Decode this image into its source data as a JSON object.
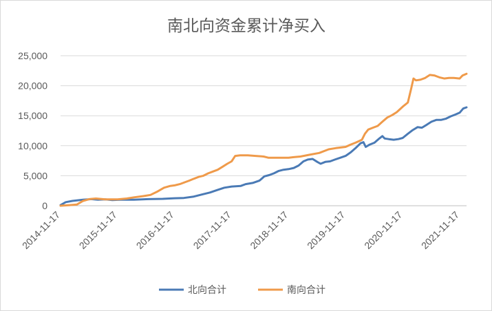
{
  "chart_data": {
    "type": "line",
    "title": "南北向资金累计净买入",
    "xlabel": "",
    "ylabel": "",
    "ylim": [
      0,
      25000
    ],
    "yticks": [
      "0",
      "5,000",
      "10,000",
      "15,000",
      "20,000",
      "25,000"
    ],
    "y_gridlines": true,
    "xlim": [
      "2014-11-17",
      "2021-12-31"
    ],
    "xticks": [
      "2014-11-17",
      "2015-11-17",
      "2016-11-17",
      "2017-11-17",
      "2018-11-17",
      "2019-11-17",
      "2020-11-17",
      "2021-11-17"
    ],
    "legend_position": "bottom",
    "series": [
      {
        "name": "北向合计",
        "color": "#4a7ab5",
        "points": [
          [
            "2014-11-17",
            100
          ],
          [
            "2014-12-20",
            600
          ],
          [
            "2015-02-01",
            800
          ],
          [
            "2015-04-10",
            1000
          ],
          [
            "2015-06-01",
            1100
          ],
          [
            "2015-07-15",
            1000
          ],
          [
            "2015-09-01",
            1050
          ],
          [
            "2015-10-15",
            950
          ],
          [
            "2015-12-01",
            1000
          ],
          [
            "2016-03-01",
            1000
          ],
          [
            "2016-06-01",
            1100
          ],
          [
            "2016-09-01",
            1150
          ],
          [
            "2016-11-17",
            1250
          ],
          [
            "2017-01-15",
            1300
          ],
          [
            "2017-03-15",
            1500
          ],
          [
            "2017-05-15",
            1900
          ],
          [
            "2017-07-01",
            2200
          ],
          [
            "2017-08-15",
            2600
          ],
          [
            "2017-10-01",
            3000
          ],
          [
            "2017-11-17",
            3200
          ],
          [
            "2018-01-15",
            3300
          ],
          [
            "2018-02-15",
            3600
          ],
          [
            "2018-04-01",
            3800
          ],
          [
            "2018-05-15",
            4200
          ],
          [
            "2018-06-15",
            4900
          ],
          [
            "2018-07-15",
            5100
          ],
          [
            "2018-08-15",
            5400
          ],
          [
            "2018-09-15",
            5800
          ],
          [
            "2018-10-15",
            6000
          ],
          [
            "2018-11-17",
            6100
          ],
          [
            "2018-12-20",
            6300
          ],
          [
            "2019-01-20",
            6700
          ],
          [
            "2019-02-20",
            7400
          ],
          [
            "2019-03-20",
            7700
          ],
          [
            "2019-04-20",
            7800
          ],
          [
            "2019-05-20",
            7300
          ],
          [
            "2019-06-10",
            7000
          ],
          [
            "2019-07-10",
            7300
          ],
          [
            "2019-08-10",
            7400
          ],
          [
            "2019-09-10",
            7700
          ],
          [
            "2019-10-15",
            8000
          ],
          [
            "2019-11-17",
            8300
          ],
          [
            "2019-12-20",
            8900
          ],
          [
            "2020-01-20",
            9600
          ],
          [
            "2020-02-20",
            10400
          ],
          [
            "2020-03-10",
            10600
          ],
          [
            "2020-03-25",
            9800
          ],
          [
            "2020-04-20",
            10200
          ],
          [
            "2020-05-20",
            10500
          ],
          [
            "2020-06-20",
            11200
          ],
          [
            "2020-07-10",
            11600
          ],
          [
            "2020-07-25",
            11200
          ],
          [
            "2020-08-20",
            11100
          ],
          [
            "2020-09-20",
            11000
          ],
          [
            "2020-10-20",
            11100
          ],
          [
            "2020-11-17",
            11300
          ],
          [
            "2020-12-20",
            12000
          ],
          [
            "2021-01-20",
            12600
          ],
          [
            "2021-02-20",
            13100
          ],
          [
            "2021-03-20",
            13000
          ],
          [
            "2021-04-20",
            13500
          ],
          [
            "2021-05-20",
            14000
          ],
          [
            "2021-06-20",
            14300
          ],
          [
            "2021-07-20",
            14300
          ],
          [
            "2021-08-20",
            14500
          ],
          [
            "2021-09-20",
            14900
          ],
          [
            "2021-10-20",
            15200
          ],
          [
            "2021-11-17",
            15500
          ],
          [
            "2021-12-10",
            16200
          ],
          [
            "2021-12-31",
            16400
          ]
        ]
      },
      {
        "name": "南向合计",
        "color": "#ef9a4a",
        "points": [
          [
            "2014-11-17",
            0
          ],
          [
            "2015-01-15",
            100
          ],
          [
            "2015-03-01",
            200
          ],
          [
            "2015-04-10",
            800
          ],
          [
            "2015-05-20",
            1100
          ],
          [
            "2015-07-01",
            1200
          ],
          [
            "2015-09-01",
            1050
          ],
          [
            "2015-11-17",
            1050
          ],
          [
            "2016-01-15",
            1200
          ],
          [
            "2016-03-01",
            1400
          ],
          [
            "2016-05-01",
            1600
          ],
          [
            "2016-06-15",
            1800
          ],
          [
            "2016-08-01",
            2400
          ],
          [
            "2016-09-10",
            3000
          ],
          [
            "2016-10-20",
            3300
          ],
          [
            "2016-11-17",
            3400
          ],
          [
            "2016-12-20",
            3600
          ],
          [
            "2017-01-20",
            3900
          ],
          [
            "2017-02-20",
            4200
          ],
          [
            "2017-03-20",
            4500
          ],
          [
            "2017-04-20",
            4800
          ],
          [
            "2017-05-20",
            5000
          ],
          [
            "2017-06-20",
            5400
          ],
          [
            "2017-07-20",
            5700
          ],
          [
            "2017-08-20",
            6000
          ],
          [
            "2017-09-20",
            6500
          ],
          [
            "2017-10-20",
            7000
          ],
          [
            "2017-11-17",
            7400
          ],
          [
            "2017-12-10",
            8300
          ],
          [
            "2018-01-10",
            8400
          ],
          [
            "2018-03-01",
            8400
          ],
          [
            "2018-04-20",
            8300
          ],
          [
            "2018-06-10",
            8200
          ],
          [
            "2018-07-10",
            8000
          ],
          [
            "2018-08-20",
            8000
          ],
          [
            "2018-10-10",
            8000
          ],
          [
            "2018-11-17",
            8000
          ],
          [
            "2018-12-20",
            8100
          ],
          [
            "2019-02-01",
            8200
          ],
          [
            "2019-04-01",
            8500
          ],
          [
            "2019-06-01",
            8800
          ],
          [
            "2019-08-01",
            9400
          ],
          [
            "2019-09-15",
            9600
          ],
          [
            "2019-11-17",
            9800
          ],
          [
            "2019-12-20",
            10200
          ],
          [
            "2020-01-20",
            10500
          ],
          [
            "2020-03-01",
            11000
          ],
          [
            "2020-03-20",
            12000
          ],
          [
            "2020-04-10",
            12700
          ],
          [
            "2020-05-10",
            13000
          ],
          [
            "2020-06-10",
            13300
          ],
          [
            "2020-07-10",
            14000
          ],
          [
            "2020-08-10",
            14700
          ],
          [
            "2020-09-10",
            15100
          ],
          [
            "2020-10-10",
            15600
          ],
          [
            "2020-11-17",
            16500
          ],
          [
            "2020-12-20",
            17200
          ],
          [
            "2021-01-10",
            19500
          ],
          [
            "2021-01-25",
            21200
          ],
          [
            "2021-02-10",
            20900
          ],
          [
            "2021-03-10",
            21000
          ],
          [
            "2021-04-10",
            21300
          ],
          [
            "2021-05-10",
            21800
          ],
          [
            "2021-06-10",
            21700
          ],
          [
            "2021-07-10",
            21400
          ],
          [
            "2021-08-10",
            21200
          ],
          [
            "2021-09-10",
            21300
          ],
          [
            "2021-10-10",
            21300
          ],
          [
            "2021-11-17",
            21200
          ],
          [
            "2021-12-05",
            21700
          ],
          [
            "2021-12-31",
            22000
          ]
        ]
      }
    ]
  }
}
